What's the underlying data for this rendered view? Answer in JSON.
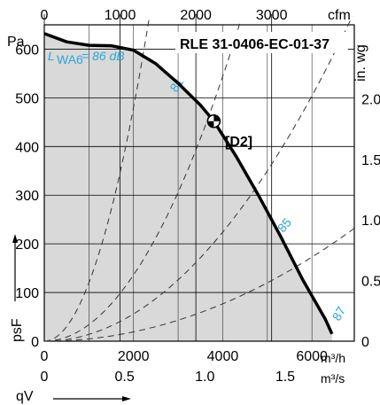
{
  "chart_data": {
    "type": "line",
    "title": "RLE 31-0406-EC-01-37",
    "ylabel": "psF",
    "xlabel": "qV",
    "x_unit": "m³/h",
    "y_unit": "Pa",
    "xlim": [
      0,
      6950
    ],
    "ylim": [
      0,
      650
    ],
    "x_ticks": [
      0,
      2000,
      4000,
      6000
    ],
    "y_ticks": [
      0,
      100,
      200,
      300,
      400,
      500,
      600
    ],
    "secondary_axes": {
      "top": {
        "unit": "cfm",
        "ticks": [
          "0",
          "1000",
          "2000",
          "3000"
        ],
        "values_m3h": [
          0,
          1699,
          3398,
          5097
        ]
      },
      "bottom2": {
        "unit": "m³/s",
        "ticks": [
          "0",
          "0.5",
          "1.0",
          "1.5"
        ],
        "values_m3h": [
          0,
          1800,
          3600,
          5400
        ]
      },
      "right": {
        "unit": "in. wg",
        "ticks": [
          "0",
          "0.5",
          "1.0",
          "1.5",
          "2.0"
        ],
        "values_pa": [
          0,
          124.5,
          249,
          373.5,
          498
        ]
      }
    },
    "grid": true,
    "series": [
      {
        "name": "",
        "color": "#000000",
        "points": [
          [
            0,
            632
          ],
          [
            500,
            615
          ],
          [
            1000,
            608
          ],
          [
            1500,
            607
          ],
          [
            2000,
            598
          ],
          [
            2500,
            570
          ],
          [
            3000,
            530
          ],
          [
            3500,
            485
          ],
          [
            3800,
            452
          ],
          [
            4300,
            380
          ],
          [
            4800,
            300
          ],
          [
            5300,
            215
          ],
          [
            5800,
            125
          ],
          [
            6300,
            45
          ],
          [
            6450,
            15
          ]
        ]
      }
    ],
    "system_curves": [
      {
        "label": "",
        "pa_at_1000": 120
      },
      {
        "label": "81",
        "pa_at_1000": 34
      },
      {
        "label": "85",
        "pa_at_1000": 14
      },
      {
        "label": "87",
        "pa_at_1000": 4.8
      }
    ],
    "operating_point": {
      "label": "[D2]",
      "x": 3800,
      "y": 452
    },
    "annotations": {
      "sound_power_label": "L",
      "sound_power_sub": "WA6",
      "sound_power_value": "= 86 dB"
    },
    "colors": {
      "fill": "#d9d9d9",
      "annotation": "#2aa8d9",
      "curve": "#000000"
    }
  }
}
